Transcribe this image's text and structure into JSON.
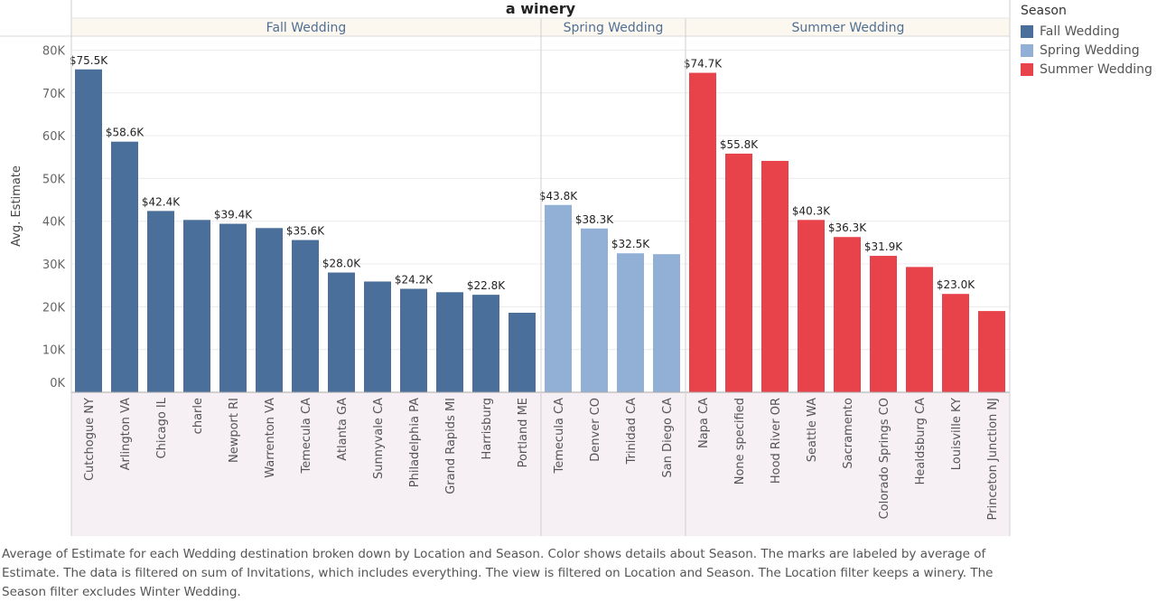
{
  "chart_data": {
    "type": "bar",
    "title": "a winery",
    "ylabel": "Avg. Estimate",
    "ylim": [
      0,
      82000
    ],
    "y_ticks": [
      "0K",
      "10K",
      "20K",
      "30K",
      "40K",
      "50K",
      "60K",
      "70K",
      "80K"
    ],
    "y_tick_values": [
      0,
      10000,
      20000,
      30000,
      40000,
      50000,
      60000,
      70000,
      80000
    ],
    "grid": true,
    "legend_position": "top-right",
    "panels": [
      {
        "name": "Fall Wedding",
        "color": "#4a6f9b",
        "categories": [
          "Cutchogue NY",
          "Arlington VA",
          "Chicago IL",
          "charle",
          "Newport RI",
          "Warrenton VA",
          "Temecula CA",
          "Atlanta GA",
          "Sunnyvale CA",
          "Philadelphia PA",
          "Grand Rapids MI",
          "Harrisburg",
          "Portland ME"
        ],
        "values": [
          75500,
          58600,
          42400,
          40300,
          39400,
          38400,
          35600,
          28000,
          25900,
          24200,
          23400,
          22800,
          18600
        ],
        "labels": [
          "$75.5K",
          "$58.6K",
          "$42.4K",
          "",
          "$39.4K",
          "",
          "$35.6K",
          "$28.0K",
          "",
          "$24.2K",
          "",
          "$22.8K",
          ""
        ]
      },
      {
        "name": "Spring Wedding",
        "color": "#92b0d6",
        "categories": [
          "Temecula CA",
          "Denver CO",
          "Trinidad CA",
          "San Diego CA"
        ],
        "values": [
          43800,
          38300,
          32500,
          32300
        ],
        "labels": [
          "$43.8K",
          "$38.3K",
          "$32.5K",
          ""
        ]
      },
      {
        "name": "Summer Wedding",
        "color": "#e8424a",
        "categories": [
          "Napa CA",
          "None specified",
          "Hood River OR",
          "Seattle WA",
          "Sacramento",
          "Colorado Springs CO",
          "Healdsburg CA",
          "Louisville KY",
          "Princeton Junction NJ"
        ],
        "values": [
          74700,
          55800,
          54100,
          40300,
          36300,
          31900,
          29300,
          23000,
          19000
        ],
        "labels": [
          "$74.7K",
          "$55.8K",
          "",
          "$40.3K",
          "$36.3K",
          "$31.9K",
          "",
          "$23.0K",
          ""
        ]
      }
    ]
  },
  "legend": {
    "title": "Season",
    "items": [
      {
        "label": "Fall Wedding",
        "color": "#4a6f9b"
      },
      {
        "label": "Spring Wedding",
        "color": "#92b0d6"
      },
      {
        "label": "Summer Wedding",
        "color": "#e8424a"
      }
    ]
  },
  "caption": "Average of Estimate for each Wedding destination broken down by Location and Season.  Color shows details about Season.  The marks are labeled by average of Estimate. The data is filtered on sum of Invitations, which includes everything. The view is filtered on Location and Season. The Location filter keeps a winery. The Season filter excludes Winter Wedding."
}
